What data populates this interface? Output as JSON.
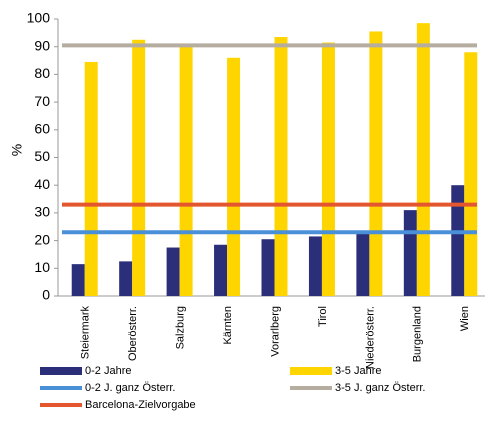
{
  "chart_data": {
    "type": "bar",
    "ylabel": "%",
    "categories": [
      "Steiermark",
      "Oberösterr.",
      "Salzburg",
      "Kärnten",
      "Vorarlberg",
      "Tirol",
      "Niederösterr.",
      "Burgenland",
      "Wien"
    ],
    "series": [
      {
        "name": "0-2 Jahre",
        "color": "#2b2f7a",
        "values": [
          11.5,
          12.5,
          17.5,
          18.5,
          20.5,
          21.5,
          23.5,
          31,
          40
        ]
      },
      {
        "name": "3-5 Jahre",
        "color": "#ffd500",
        "values": [
          84.5,
          92.5,
          90.5,
          86,
          93.5,
          91.5,
          95.5,
          98.5,
          88
        ]
      },
      {
        "name": "0-2 J. ganz Österr.",
        "color": "#4a90d9",
        "type": "line",
        "value": 23
      },
      {
        "name": "3-5 J. ganz Österr.",
        "color": "#b5ada0",
        "type": "line",
        "value": 90.5
      },
      {
        "name": "Barcelona-Zielvorgabe",
        "color": "#e4572e",
        "type": "line",
        "value": 33
      }
    ],
    "ylim": [
      0,
      100
    ],
    "yticks": [
      0,
      10,
      20,
      30,
      40,
      50,
      60,
      70,
      80,
      90,
      100
    ]
  }
}
